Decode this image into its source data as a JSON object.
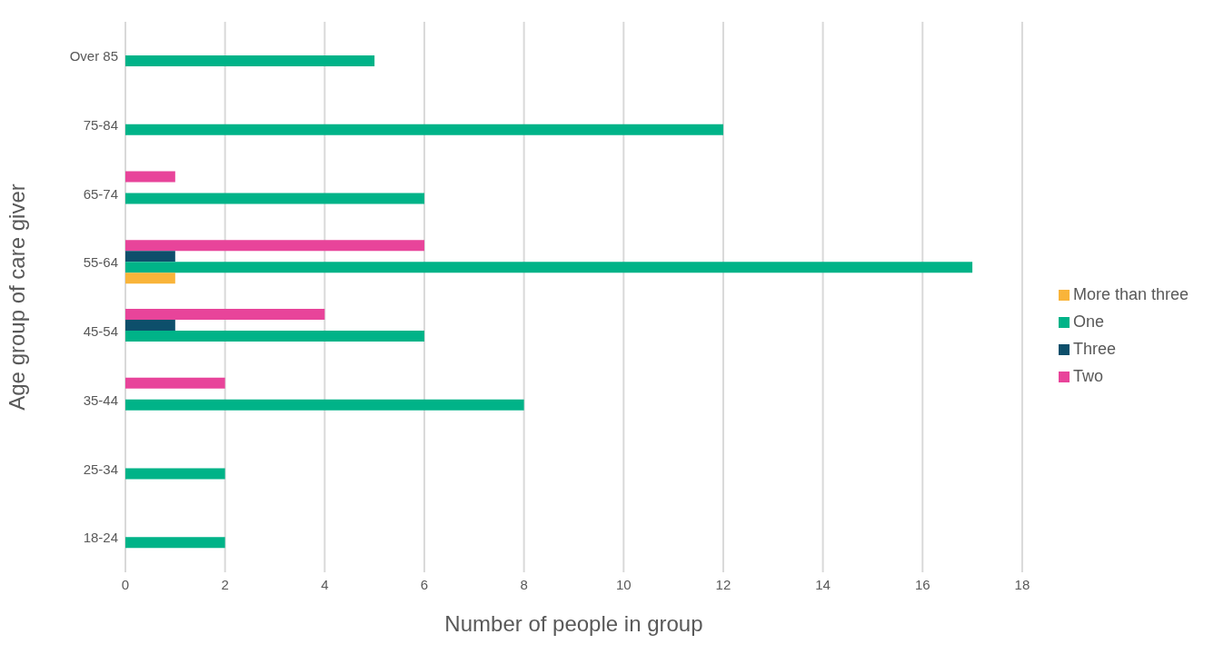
{
  "chart_data": {
    "type": "bar",
    "orientation": "horizontal",
    "xlabel": "Number of people in group",
    "ylabel": "Age group of care giver",
    "categories": [
      "Over 85",
      "75-84",
      "65-74",
      "55-64",
      "45-54",
      "35-44",
      "25-34",
      "18-24"
    ],
    "series": [
      {
        "name": "Two",
        "color": "#e8449a",
        "values": [
          null,
          null,
          1,
          6,
          4,
          2,
          null,
          null
        ]
      },
      {
        "name": "Three",
        "color": "#0d4f6b",
        "values": [
          null,
          null,
          null,
          1,
          1,
          null,
          null,
          null
        ]
      },
      {
        "name": "One",
        "color": "#00b388",
        "values": [
          5,
          12,
          6,
          17,
          6,
          8,
          2,
          2
        ]
      },
      {
        "name": "More than three",
        "color": "#f9b43a",
        "values": [
          null,
          null,
          null,
          1,
          null,
          null,
          null,
          null
        ]
      }
    ],
    "xlim": [
      0,
      18
    ],
    "xticks": [
      0,
      2,
      4,
      6,
      8,
      10,
      12,
      14,
      16,
      18
    ],
    "grid": "x",
    "legend": "right"
  }
}
